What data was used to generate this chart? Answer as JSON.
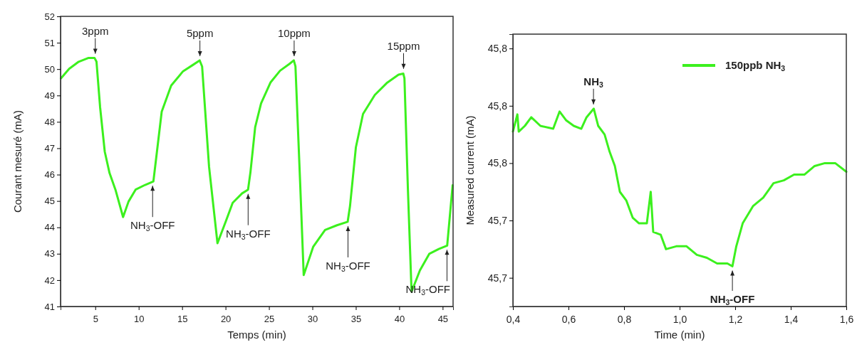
{
  "chart_data": [
    {
      "type": "line",
      "xlabel": "Temps (min)",
      "ylabel": "Courant mesuré (mA)",
      "xlim": [
        1,
        46.2
      ],
      "xticks": [
        5,
        10,
        15,
        20,
        25,
        30,
        35,
        40,
        45
      ],
      "ylim": [
        41,
        52
      ],
      "yticks": [
        41,
        42,
        43,
        44,
        45,
        46,
        47,
        48,
        49,
        50,
        51,
        52
      ],
      "series": [
        {
          "color": "#3cf01e",
          "x": [
            1.04,
            1.99,
            3.09,
            4.18,
            4.92,
            5.14,
            5.55,
            6.09,
            6.64,
            7.32,
            8.2,
            8.83,
            9.64,
            10.74,
            11.69,
            12.1,
            12.65,
            13.74,
            15.11,
            16.2,
            17.02,
            17.3,
            18.1,
            19.07,
            20.0,
            20.82,
            21.91,
            22.59,
            22.87,
            23.41,
            24.09,
            25.19,
            26.28,
            27.37,
            27.86,
            28.05,
            28.6,
            29.0,
            30.1,
            31.46,
            32.83,
            34.06,
            34.33,
            35.01,
            35.83,
            37.19,
            38.56,
            39.92,
            40.47,
            40.6,
            41.0,
            41.42,
            42.38,
            43.47,
            44.56,
            45.52,
            46.15
          ],
          "values": [
            49.65,
            50.01,
            50.28,
            50.42,
            50.42,
            50.28,
            48.57,
            46.87,
            46.06,
            45.43,
            44.39,
            44.98,
            45.43,
            45.61,
            45.74,
            46.87,
            48.39,
            49.38,
            49.92,
            50.15,
            50.33,
            50.1,
            46.3,
            43.4,
            44.2,
            44.93,
            45.29,
            45.43,
            46.1,
            47.8,
            48.7,
            49.5,
            49.94,
            50.2,
            50.33,
            50.1,
            45.6,
            42.19,
            43.27,
            43.9,
            44.08,
            44.21,
            44.8,
            47.04,
            48.3,
            49.02,
            49.47,
            49.79,
            49.83,
            49.65,
            45.43,
            41.56,
            42.37,
            43.0,
            43.18,
            43.31,
            45.6
          ]
        }
      ],
      "annotations": [
        {
          "text": "3ppm",
          "x": 5,
          "y": 50.42
        },
        {
          "text": "NH$_{3}$-OFF",
          "x": 11.6,
          "y": 45.74
        },
        {
          "text": "5ppm",
          "x": 17.05,
          "y": 50.33
        },
        {
          "text": "NH$_{3}$-OFF",
          "x": 22.6,
          "y": 45.43
        },
        {
          "text": "10ppm",
          "x": 27.9,
          "y": 50.33
        },
        {
          "text": "NH$_{3}$-OFF",
          "x": 34.1,
          "y": 44.21
        },
        {
          "text": "15ppm",
          "x": 40.5,
          "y": 49.85
        },
        {
          "text": "NH$_{3}$-OFF",
          "x": 45.5,
          "y": 43.31
        }
      ]
    },
    {
      "type": "line",
      "xlabel": "Time (min)",
      "ylabel": "Measured current (mA)",
      "xlim": [
        0.4,
        1.6
      ],
      "xticks": [
        {
          "value": 0.4,
          "label": "0,4"
        },
        {
          "value": 0.6,
          "label": "0,6"
        },
        {
          "value": 0.8,
          "label": "0,8"
        },
        {
          "value": 1.0,
          "label": "1,0"
        },
        {
          "value": 1.2,
          "label": "1,2"
        },
        {
          "value": 1.4,
          "label": "1,4"
        },
        {
          "value": 1.6,
          "label": "1,6"
        }
      ],
      "ylim": [
        45.71,
        45.805
      ],
      "yticks": [
        {
          "value": 45.72,
          "label": "45,7"
        },
        {
          "value": 45.74,
          "label": "45,7"
        },
        {
          "value": 45.76,
          "label": "45,8"
        },
        {
          "value": 45.78,
          "label": "45,8"
        },
        {
          "value": 45.8,
          "label": "45,8"
        }
      ],
      "legend": "top right",
      "series": [
        {
          "name": "150ppb NH$_{3}$",
          "color": "#3cf01e",
          "x": [
            0.4,
            0.416,
            0.421,
            0.443,
            0.466,
            0.499,
            0.545,
            0.568,
            0.591,
            0.619,
            0.646,
            0.665,
            0.691,
            0.707,
            0.73,
            0.748,
            0.767,
            0.785,
            0.808,
            0.831,
            0.854,
            0.882,
            0.896,
            0.905,
            0.932,
            0.951,
            0.988,
            1.025,
            1.062,
            1.098,
            1.135,
            1.172,
            1.19,
            1.204,
            1.227,
            1.264,
            1.301,
            1.338,
            1.375,
            1.412,
            1.449,
            1.486,
            1.523,
            1.56,
            1.6
          ],
          "values": [
            45.771,
            45.777,
            45.771,
            45.773,
            45.776,
            45.773,
            45.772,
            45.778,
            45.775,
            45.773,
            45.772,
            45.776,
            45.779,
            45.773,
            45.77,
            45.764,
            45.759,
            45.75,
            45.747,
            45.741,
            45.739,
            45.739,
            45.75,
            45.736,
            45.735,
            45.73,
            45.731,
            45.731,
            45.728,
            45.727,
            45.725,
            45.725,
            45.724,
            45.731,
            45.739,
            45.745,
            45.748,
            45.753,
            45.754,
            45.756,
            45.756,
            45.759,
            45.76,
            45.76,
            45.757
          ]
        }
      ],
      "annotations": [
        {
          "text": "NH$_{3}$",
          "x": 0.69,
          "y": 45.779
        },
        {
          "text": "NH$_{3}$-OFF",
          "x": 1.19,
          "y": 45.724
        }
      ]
    }
  ]
}
